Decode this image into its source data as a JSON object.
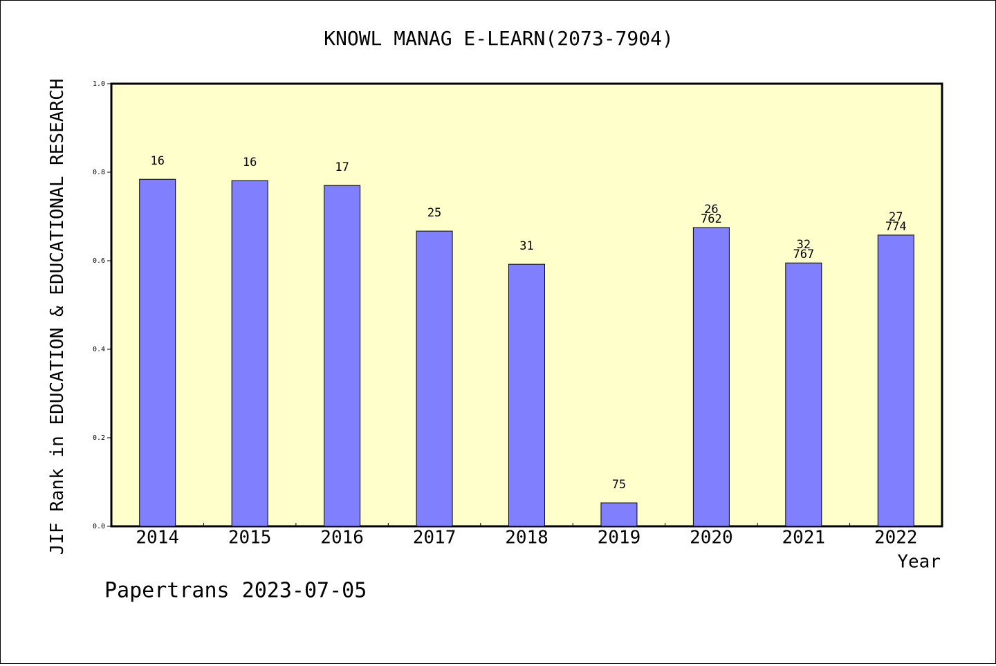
{
  "chart_data": {
    "type": "bar",
    "title": "KNOWL MANAG E-LEARN(2073-7904)",
    "xlabel": "Year",
    "ylabel": "JIF Rank in EDUCATION & EDUCATIONAL RESEARCH",
    "ylim": [
      0,
      1.0
    ],
    "yticks": [
      "0.0",
      "0.2",
      "0.4",
      "0.6",
      "0.8",
      "1.0"
    ],
    "grid": false,
    "categories": [
      "2014",
      "2015",
      "2016",
      "2017",
      "2018",
      "2019",
      "2020",
      "2021",
      "2022"
    ],
    "values": [
      0.784,
      0.781,
      0.77,
      0.667,
      0.592,
      0.053,
      0.675,
      0.595,
      0.658
    ],
    "bar_labels": [
      [
        "16"
      ],
      [
        "16"
      ],
      [
        "17"
      ],
      [
        "25"
      ],
      [
        "31"
      ],
      [
        "75"
      ],
      [
        "26",
        "762"
      ],
      [
        "32",
        "767"
      ],
      [
        "27",
        "774"
      ]
    ]
  },
  "footer": "Papertrans 2023-07-05",
  "colors": {
    "plot_background": "#ffffcc",
    "bar_fill": "#8080ff",
    "axes": "#000000"
  }
}
